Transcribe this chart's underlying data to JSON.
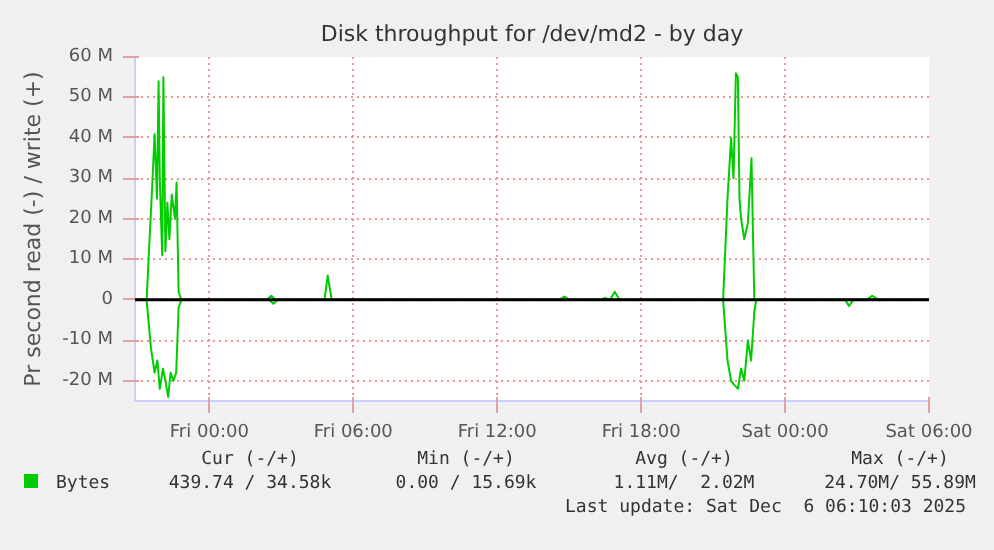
{
  "chart_data": {
    "type": "line",
    "title": "Disk throughput for /dev/md2 - by day",
    "ylabel": "Pr second read (-) / write (+)",
    "xlim": [
      "2025-12-04T20:54",
      "2025-12-06T06:00"
    ],
    "xticks": [
      {
        "value": "2025-12-05T00:00",
        "label": "Fri 00:00"
      },
      {
        "value": "2025-12-05T06:00",
        "label": "Fri 06:00"
      },
      {
        "value": "2025-12-05T12:00",
        "label": "Fri 12:00"
      },
      {
        "value": "2025-12-05T18:00",
        "label": "Fri 18:00"
      },
      {
        "value": "2025-12-06T00:00",
        "label": "Sat 00:00"
      },
      {
        "value": "2025-12-06T06:00",
        "label": "Sat 06:00"
      }
    ],
    "ylim": [
      -25,
      60
    ],
    "yticks": [
      {
        "value": -20,
        "label": "-20 M"
      },
      {
        "value": -10,
        "label": "-10 M"
      },
      0,
      {
        "value": 10,
        "label": "10 M"
      },
      {
        "value": 20,
        "label": "20 M"
      },
      {
        "value": 30,
        "label": "30 M"
      },
      {
        "value": 40,
        "label": "40 M"
      },
      {
        "value": 50,
        "label": "50 M"
      },
      {
        "value": 60,
        "label": "60 M"
      }
    ],
    "grid": true,
    "legend": "bottom left",
    "ref_lines": [
      {
        "axis": "y",
        "value": 0,
        "color": "#000000"
      }
    ],
    "series": [
      {
        "name": "Bytes",
        "color": "#00cc00",
        "x": [
          "2025-12-04T20:54",
          "2025-12-04T21:23",
          "2025-12-04T21:37",
          "2025-12-04T21:43",
          "2025-12-04T21:49",
          "2025-12-04T21:53",
          "2025-12-04T21:56",
          "2025-12-04T22:02",
          "2025-12-04T22:05",
          "2025-12-04T22:10",
          "2025-12-04T22:15",
          "2025-12-04T22:20",
          "2025-12-04T22:26",
          "2025-12-04T22:34",
          "2025-12-04T22:38",
          "2025-12-04T22:43",
          "2025-12-04T22:50",
          "2025-12-05T02:24",
          "2025-12-05T02:35",
          "2025-12-05T02:45",
          "2025-12-05T04:48",
          "2025-12-05T04:56",
          "2025-12-05T05:06",
          "2025-12-05T14:36",
          "2025-12-05T14:48",
          "2025-12-05T15:00",
          "2025-12-05T16:18",
          "2025-12-05T16:30",
          "2025-12-05T16:42",
          "2025-12-05T16:54",
          "2025-12-05T17:06",
          "2025-12-05T21:25",
          "2025-12-05T21:36",
          "2025-12-05T21:45",
          "2025-12-05T21:51",
          "2025-12-05T21:57",
          "2025-12-05T22:02",
          "2025-12-05T22:06",
          "2025-12-05T22:10",
          "2025-12-05T22:18",
          "2025-12-05T22:27",
          "2025-12-05T22:36",
          "2025-12-05T22:43",
          "2025-12-06T03:24",
          "2025-12-06T03:38",
          "2025-12-06T03:54",
          "2025-12-06T06:00"
        ],
        "values": [
          0,
          0,
          28,
          41,
          25,
          54,
          30,
          11,
          55,
          12,
          24,
          15,
          26,
          20,
          29,
          2,
          0,
          0,
          1,
          0,
          0,
          6,
          0,
          0,
          0.8,
          0,
          0,
          0.5,
          0,
          2,
          0,
          0,
          25,
          40,
          30,
          56,
          55,
          25,
          20,
          15,
          19,
          35,
          0,
          0,
          1,
          0,
          0
        ]
      },
      {
        "color": "#00cc00",
        "x": [
          "2025-12-04T20:54",
          "2025-12-04T21:23",
          "2025-12-04T21:34",
          "2025-12-04T21:43",
          "2025-12-04T21:50",
          "2025-12-04T21:56",
          "2025-12-04T22:04",
          "2025-12-04T22:10",
          "2025-12-04T22:17",
          "2025-12-04T22:23",
          "2025-12-04T22:30",
          "2025-12-04T22:37",
          "2025-12-04T22:43",
          "2025-12-04T22:50",
          "2025-12-05T02:30",
          "2025-12-05T02:40",
          "2025-12-05T02:51",
          "2025-12-05T21:25",
          "2025-12-05T21:36",
          "2025-12-05T21:45",
          "2025-12-05T21:53",
          "2025-12-05T22:02",
          "2025-12-05T22:10",
          "2025-12-05T22:18",
          "2025-12-05T22:27",
          "2025-12-05T22:35",
          "2025-12-05T22:43",
          "2025-12-05T22:48",
          "2025-12-06T02:30",
          "2025-12-06T02:40",
          "2025-12-06T02:51",
          "2025-12-06T06:00"
        ],
        "values": [
          0,
          0,
          -12,
          -18,
          -15,
          -22,
          -17,
          -20,
          -24,
          -18,
          -20,
          -18,
          -2,
          0,
          0,
          -1,
          0,
          0,
          -15,
          -20,
          -21,
          -22,
          -17,
          -20,
          -10,
          -15,
          -3,
          0,
          0,
          -1.5,
          0,
          0
        ]
      }
    ],
    "annotations": [
      "Cur (-/+)",
      "Min (-/+)",
      "Avg (-/+)",
      "Max (-/+)",
      "439.74 / 34.58k",
      "0.00 / 15.69k",
      "1.11M/  2.02M",
      "24.70M/ 55.89M",
      "Last update: Sat Dec  6 06:10:03 2025"
    ]
  }
}
